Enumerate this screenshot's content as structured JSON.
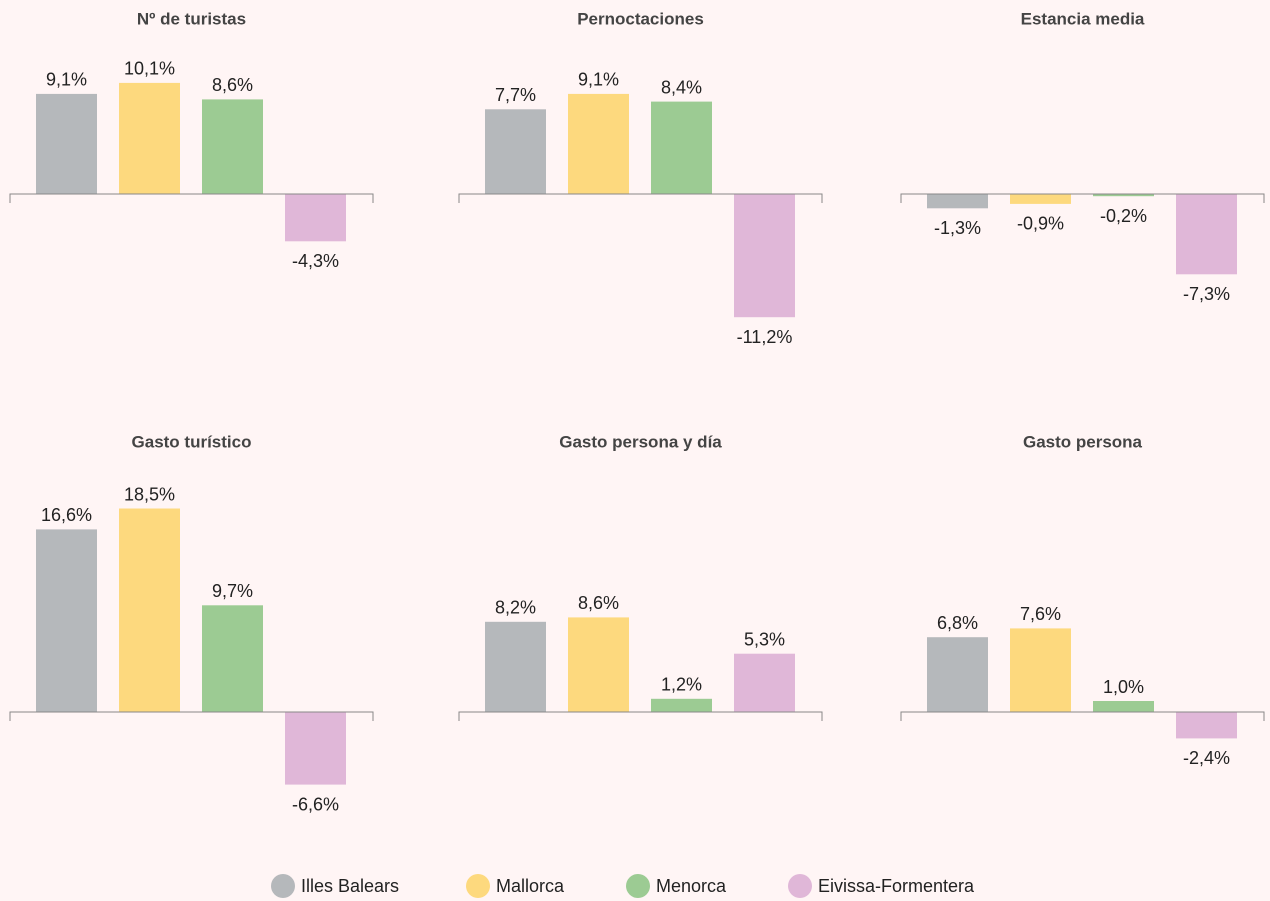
{
  "legend": [
    {
      "name": "Illes Balears",
      "color": "#b5b8bb"
    },
    {
      "name": "Mallorca",
      "color": "#fdd97e"
    },
    {
      "name": "Menorca",
      "color": "#9ccb93"
    },
    {
      "name": "Eivissa-Formentera",
      "color": "#e0b7d8"
    }
  ],
  "chart_data": [
    {
      "type": "bar",
      "title": "Nº de turistas",
      "values": [
        9.1,
        10.1,
        8.6,
        -4.3
      ],
      "value_labels": [
        "9,1%",
        "10,1%",
        "8,6%",
        "-4,3%"
      ],
      "ylim": [
        -13,
        15
      ]
    },
    {
      "type": "bar",
      "title": "Pernoctaciones",
      "values": [
        7.7,
        9.1,
        8.4,
        -11.2
      ],
      "value_labels": [
        "7,7%",
        "9,1%",
        "8,4%",
        "-11,2%"
      ],
      "ylim": [
        -13,
        15
      ]
    },
    {
      "type": "bar",
      "title": "Estancia media",
      "values": [
        -1.3,
        -0.9,
        -0.2,
        -7.3
      ],
      "value_labels": [
        "-1,3%",
        "-0,9%",
        "-0,2%",
        "-7,3%"
      ],
      "ylim": [
        -13,
        15
      ]
    },
    {
      "type": "bar",
      "title": "Gasto turístico",
      "values": [
        16.6,
        18.5,
        9.7,
        -6.6
      ],
      "value_labels": [
        "16,6%",
        "18,5%",
        "9,7%",
        "-6,6%"
      ],
      "ylim": [
        -9,
        21
      ]
    },
    {
      "type": "bar",
      "title": "Gasto persona y día",
      "values": [
        8.2,
        8.6,
        1.2,
        5.3
      ],
      "value_labels": [
        "8,2%",
        "8,6%",
        "1,2%",
        "5,3%"
      ],
      "ylim": [
        -9,
        21
      ]
    },
    {
      "type": "bar",
      "title": "Gasto persona",
      "values": [
        6.8,
        7.6,
        1.0,
        -2.4
      ],
      "value_labels": [
        "6,8%",
        "7,6%",
        "1,0%",
        "-2,4%"
      ],
      "ylim": [
        -9,
        21
      ]
    }
  ]
}
